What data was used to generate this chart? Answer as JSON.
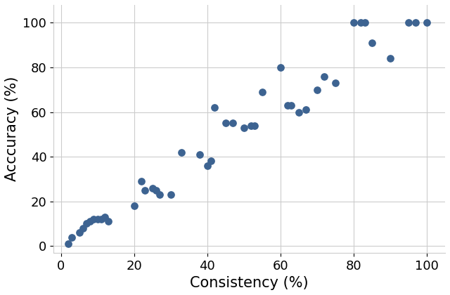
{
  "title": "",
  "xlabel": "Consistency (%)",
  "ylabel": "Acccuracy (%)",
  "scatter_x": [
    2,
    3,
    5,
    6,
    7,
    8,
    9,
    10,
    11,
    12,
    13,
    20,
    22,
    23,
    25,
    26,
    27,
    30,
    33,
    38,
    40,
    41,
    42,
    45,
    47,
    50,
    52,
    53,
    55,
    60,
    62,
    63,
    65,
    67,
    70,
    72,
    75,
    80,
    82,
    83,
    85,
    90,
    95,
    97,
    100
  ],
  "scatter_y": [
    1,
    4,
    6,
    8,
    10,
    11,
    12,
    12,
    12,
    13,
    11,
    18,
    29,
    25,
    26,
    25,
    23,
    23,
    42,
    41,
    36,
    38,
    62,
    55,
    55,
    53,
    54,
    54,
    69,
    80,
    63,
    63,
    60,
    61,
    70,
    76,
    73,
    100,
    100,
    100,
    91,
    84,
    100,
    100,
    100
  ],
  "color": "#3d6391",
  "marker_size": 45,
  "xlim": [
    -2,
    105
  ],
  "ylim": [
    -3,
    108
  ],
  "xticks": [
    0,
    20,
    40,
    60,
    80,
    100
  ],
  "yticks": [
    0,
    20,
    40,
    60,
    80,
    100
  ],
  "grid": true,
  "figsize": [
    6.4,
    4.2
  ],
  "dpi": 100,
  "xlabel_fontsize": 15,
  "ylabel_fontsize": 15,
  "tick_fontsize": 13,
  "bg_color": "#ffffff",
  "grid_color": "#cccccc"
}
